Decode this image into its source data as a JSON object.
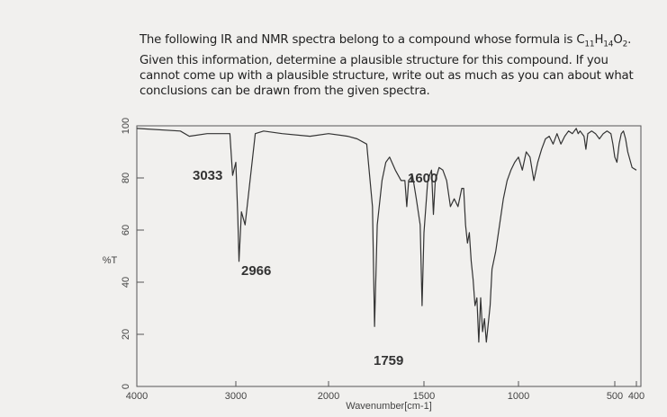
{
  "question": {
    "intro": "The following IR and NMR spectra belong to a compound whose formula is ",
    "formula": [
      [
        "C",
        "11"
      ],
      [
        "H",
        "14"
      ],
      [
        "O",
        "2"
      ]
    ],
    "end": ".",
    "lines": [
      "Given this information, determine a plausible structure for this compound. If you",
      "cannot come up with a plausible structure, write out as much as you can about what",
      "conclusions can be drawn from the given spectra."
    ]
  },
  "chart_data": {
    "type": "line",
    "ylabel": "%T",
    "xlabel": "Wavenumber[cm-1]",
    "annotations": [
      "3033",
      "2966",
      "1759",
      "1600"
    ],
    "xlim": [
      4000,
      400
    ],
    "xticks": [
      4000,
      3000,
      2000,
      1500,
      1000,
      500,
      400
    ],
    "ylim": [
      0,
      100
    ],
    "yticks": [
      0,
      20,
      40,
      60,
      80,
      100
    ],
    "series": [
      {
        "color": "#333333",
        "x": [
          4000,
          3560,
          3470,
          3290,
          3100,
          3060,
          3033,
          3000,
          2980,
          2966,
          2940,
          2900,
          2790,
          2700,
          2500,
          2200,
          2000,
          1900,
          1850,
          1800,
          1770,
          1759,
          1745,
          1720,
          1700,
          1680,
          1650,
          1620,
          1600,
          1590,
          1580,
          1560,
          1540,
          1520,
          1510,
          1500,
          1480,
          1460,
          1450,
          1440,
          1420,
          1400,
          1380,
          1360,
          1340,
          1320,
          1300,
          1290,
          1280,
          1270,
          1260,
          1250,
          1240,
          1230,
          1220,
          1210,
          1200,
          1190,
          1180,
          1170,
          1160,
          1150,
          1140,
          1120,
          1100,
          1080,
          1060,
          1040,
          1020,
          1000,
          980,
          960,
          940,
          920,
          900,
          880,
          860,
          840,
          820,
          800,
          780,
          760,
          740,
          720,
          700,
          690,
          680,
          660,
          650,
          640,
          620,
          600,
          580,
          560,
          540,
          520,
          510,
          500,
          490,
          480,
          470,
          460,
          450,
          440,
          420,
          400
        ],
        "values": [
          99,
          98,
          96,
          97,
          97,
          97,
          81,
          86,
          66,
          48,
          67,
          62,
          97,
          98,
          97,
          96,
          97,
          96,
          95,
          93,
          69,
          23,
          62,
          79,
          86,
          88,
          83,
          79,
          79,
          69,
          79,
          81,
          72,
          62,
          31,
          59,
          79,
          83,
          66,
          79,
          84,
          83,
          79,
          69,
          72,
          69,
          76,
          76,
          62,
          55,
          59,
          48,
          41,
          31,
          34,
          17,
          34,
          21,
          26,
          17,
          24,
          31,
          45,
          52,
          62,
          72,
          79,
          83,
          86,
          88,
          83,
          90,
          88,
          79,
          86,
          91,
          95,
          96,
          93,
          97,
          93,
          96,
          98,
          97,
          99,
          97,
          98,
          96,
          91,
          97,
          98,
          97,
          95,
          97,
          98,
          97,
          93,
          88,
          86,
          93,
          97,
          98,
          95,
          90,
          84,
          83
        ]
      }
    ]
  }
}
